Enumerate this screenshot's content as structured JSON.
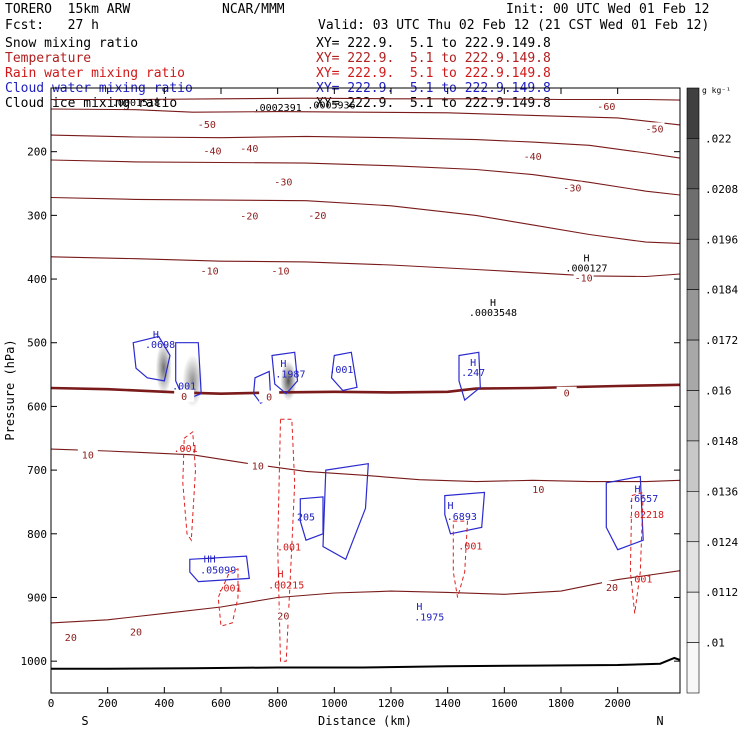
{
  "header": {
    "model": "TORERO  15km ARW",
    "org": "NCAR/MMM",
    "init": "Init: 00 UTC Wed 01 Feb 12",
    "fcst": "Fcst:   27 h",
    "valid": "Valid: 03 UTC Thu 02 Feb 12 (21 CST Wed 01 Feb 12)",
    "fields": [
      {
        "name": "Snow mixing ratio",
        "xy": "XY= 222.9.  5.1 to 222.9.149.8",
        "color": "#000000"
      },
      {
        "name": "Temperature",
        "xy": "XY= 222.9.  5.1 to 222.9.149.8",
        "color": "#b02020"
      },
      {
        "name": "Rain water mixing ratio",
        "xy": "XY= 222.9.  5.1 to 222.9.149.8",
        "color": "#d01818"
      },
      {
        "name": "Cloud water mixing ratio",
        "xy": "XY= 222.9.  5.1 to 222.9.149.8",
        "color": "#2020c0"
      },
      {
        "name": "Cloud ice mixing ratio",
        "xy": "XY= 222.9.  5.1 to 222.9.149.8",
        "color": "#000000"
      }
    ]
  },
  "chart_data": {
    "type": "contour-cross-section",
    "xlabel": "Distance (km)",
    "ylabel": "Pressure (hPa)",
    "xlim": [
      0,
      2220
    ],
    "ylim": [
      1050,
      100
    ],
    "xticks": [
      0,
      200,
      400,
      600,
      800,
      1000,
      1200,
      1400,
      1600,
      1800,
      2000
    ],
    "yticks": [
      200,
      300,
      400,
      500,
      600,
      700,
      800,
      900,
      1000
    ],
    "x_end_labels": {
      "left": "S",
      "right": "N"
    },
    "colorbar": {
      "unit": "g kg⁻¹",
      "ticks": [
        ".022",
        ".0208",
        ".0196",
        ".0184",
        ".0172",
        ".016",
        ".0148",
        ".0136",
        ".0124",
        ".0112",
        ".01"
      ],
      "colors": [
        "#404040",
        "#5a5a5a",
        "#6e6e6e",
        "#828282",
        "#969696",
        "#a8a8a8",
        "#b8b8b8",
        "#c8c8c8",
        "#d6d6d6",
        "#e2e2e2",
        "#eeeeee",
        "#f7f7f7"
      ]
    },
    "temperature_isotherms": [
      {
        "value": -60,
        "pts": [
          [
            0,
            118
          ],
          [
            300,
            118
          ],
          [
            600,
            117
          ],
          [
            900,
            116
          ],
          [
            1200,
            117
          ],
          [
            1500,
            117
          ],
          [
            1800,
            118
          ],
          [
            2100,
            118
          ],
          [
            2220,
            119
          ]
        ]
      },
      {
        "value": -50,
        "pts": [
          [
            0,
            133
          ],
          [
            300,
            134
          ],
          [
            500,
            138
          ],
          [
            800,
            137
          ],
          [
            1100,
            138
          ],
          [
            1400,
            139
          ],
          [
            1700,
            143
          ],
          [
            2000,
            147
          ],
          [
            2220,
            158
          ]
        ]
      },
      {
        "value": -40,
        "pts": [
          [
            0,
            174
          ],
          [
            300,
            177
          ],
          [
            600,
            178
          ],
          [
            900,
            176
          ],
          [
            1200,
            178
          ],
          [
            1500,
            181
          ],
          [
            1700,
            185
          ],
          [
            1900,
            190
          ],
          [
            2100,
            202
          ],
          [
            2220,
            210
          ]
        ]
      },
      {
        "value": -30,
        "pts": [
          [
            0,
            213
          ],
          [
            300,
            216
          ],
          [
            600,
            217
          ],
          [
            900,
            218
          ],
          [
            1200,
            222
          ],
          [
            1500,
            228
          ],
          [
            1700,
            236
          ],
          [
            1900,
            248
          ],
          [
            2100,
            262
          ],
          [
            2220,
            268
          ]
        ]
      },
      {
        "value": -20,
        "pts": [
          [
            0,
            272
          ],
          [
            300,
            275
          ],
          [
            600,
            276
          ],
          [
            900,
            277
          ],
          [
            1200,
            285
          ],
          [
            1500,
            300
          ],
          [
            1700,
            315
          ],
          [
            1900,
            330
          ],
          [
            2100,
            342
          ],
          [
            2220,
            344
          ]
        ]
      },
      {
        "value": -10,
        "pts": [
          [
            0,
            365
          ],
          [
            300,
            368
          ],
          [
            600,
            372
          ],
          [
            900,
            373
          ],
          [
            1200,
            378
          ],
          [
            1500,
            385
          ],
          [
            1700,
            390
          ],
          [
            1900,
            395
          ],
          [
            2100,
            396
          ],
          [
            2220,
            392
          ]
        ]
      },
      {
        "value": 0,
        "pts": [
          [
            0,
            571
          ],
          [
            200,
            573
          ],
          [
            450,
            578
          ],
          [
            600,
            580
          ],
          [
            800,
            578
          ],
          [
            1000,
            577
          ],
          [
            1200,
            578
          ],
          [
            1400,
            577
          ],
          [
            1500,
            572
          ],
          [
            1700,
            571
          ],
          [
            2000,
            568
          ],
          [
            2220,
            566
          ]
        ],
        "bold": true
      },
      {
        "value": 10,
        "pts": [
          [
            0,
            667
          ],
          [
            200,
            670
          ],
          [
            500,
            676
          ],
          [
            700,
            690
          ],
          [
            900,
            702
          ],
          [
            1100,
            708
          ],
          [
            1300,
            715
          ],
          [
            1500,
            718
          ],
          [
            1700,
            716
          ],
          [
            1900,
            718
          ],
          [
            2100,
            718
          ],
          [
            2220,
            716
          ]
        ]
      },
      {
        "value": 20,
        "pts": [
          [
            0,
            940
          ],
          [
            200,
            935
          ],
          [
            400,
            925
          ],
          [
            600,
            915
          ],
          [
            800,
            900
          ],
          [
            1000,
            893
          ],
          [
            1200,
            890
          ],
          [
            1400,
            892
          ],
          [
            1600,
            895
          ],
          [
            1800,
            890
          ],
          [
            2000,
            872
          ],
          [
            2220,
            858
          ]
        ]
      }
    ],
    "temperature_labels": [
      {
        "text": "-60",
        "x": 1960,
        "p": 130
      },
      {
        "text": "-50",
        "x": 550,
        "p": 158
      },
      {
        "text": "-50",
        "x": 2130,
        "p": 165
      },
      {
        "text": "-40",
        "x": 570,
        "p": 200
      },
      {
        "text": "-40",
        "x": 700,
        "p": 196
      },
      {
        "text": "-40",
        "x": 1700,
        "p": 208
      },
      {
        "text": "-30",
        "x": 820,
        "p": 248
      },
      {
        "text": "-30",
        "x": 1840,
        "p": 258
      },
      {
        "text": "-20",
        "x": 700,
        "p": 302
      },
      {
        "text": "-20",
        "x": 940,
        "p": 301
      },
      {
        "text": "-10",
        "x": 560,
        "p": 388
      },
      {
        "text": "-10",
        "x": 810,
        "p": 388
      },
      {
        "text": "-10",
        "x": 1880,
        "p": 399
      },
      {
        "text": "0",
        "x": 470,
        "p": 585
      },
      {
        "text": "0",
        "x": 770,
        "p": 586
      },
      {
        "text": "0",
        "x": 1820,
        "p": 580
      },
      {
        "text": "10",
        "x": 130,
        "p": 677
      },
      {
        "text": "10",
        "x": 730,
        "p": 694
      },
      {
        "text": "10",
        "x": 1720,
        "p": 731
      },
      {
        "text": "20",
        "x": 70,
        "p": 964
      },
      {
        "text": "20",
        "x": 300,
        "p": 955
      },
      {
        "text": "20",
        "x": 820,
        "p": 930
      },
      {
        "text": "20",
        "x": 1980,
        "p": 885
      }
    ],
    "data_labels": [
      {
        "text": ".0001518",
        "x": 300,
        "p": 122,
        "color": "#000000"
      },
      {
        "text": ".0002391",
        "x": 800,
        "p": 130,
        "color": "#000000"
      },
      {
        "text": ".0005936",
        "x": 990,
        "p": 126,
        "color": "#000000"
      },
      {
        "text": "H",
        "x": 1890,
        "p": 366,
        "color": "#000000"
      },
      {
        "text": ".000127",
        "x": 1890,
        "p": 382,
        "color": "#000000"
      },
      {
        "text": "H",
        "x": 1560,
        "p": 436,
        "color": "#000000"
      },
      {
        "text": ".0003548",
        "x": 1560,
        "p": 452,
        "color": "#000000"
      },
      {
        "text": "H",
        "x": 370,
        "p": 486,
        "color": "#2020c0"
      },
      {
        "text": ".0698",
        "x": 385,
        "p": 502,
        "color": "#2020c0"
      },
      {
        "text": ".001",
        "x": 470,
        "p": 567,
        "color": "#2020c0"
      },
      {
        "text": "H",
        "x": 820,
        "p": 532,
        "color": "#2020c0"
      },
      {
        "text": ".1987",
        "x": 845,
        "p": 548,
        "color": "#2020c0"
      },
      {
        "text": ".001",
        "x": 1025,
        "p": 541,
        "color": "#2020c0"
      },
      {
        "text": "H",
        "x": 1490,
        "p": 530,
        "color": "#2020c0"
      },
      {
        "text": ".247",
        "x": 1490,
        "p": 546,
        "color": "#2020c0"
      },
      {
        "text": ".001",
        "x": 475,
        "p": 665,
        "color": "#d01818"
      },
      {
        "text": "H",
        "x": 1410,
        "p": 755,
        "color": "#2020c0"
      },
      {
        "text": ".6893",
        "x": 1450,
        "p": 772,
        "color": "#2020c0"
      },
      {
        "text": "205",
        "x": 900,
        "p": 773,
        "color": "#2020c0"
      },
      {
        "text": "H",
        "x": 2070,
        "p": 729,
        "color": "#2020c0"
      },
      {
        "text": ".6657",
        "x": 2090,
        "p": 744,
        "color": "#2020c0"
      },
      {
        "text": ".02218",
        "x": 2100,
        "p": 769,
        "color": "#d01818"
      },
      {
        "text": ".001",
        "x": 840,
        "p": 820,
        "color": "#d01818"
      },
      {
        "text": ".001",
        "x": 1480,
        "p": 818,
        "color": "#d01818"
      },
      {
        "text": "HH",
        "x": 560,
        "p": 839,
        "color": "#2020c0"
      },
      {
        "text": ".05099",
        "x": 590,
        "p": 856,
        "color": "#2020c0"
      },
      {
        "text": "H",
        "x": 810,
        "p": 862,
        "color": "#d01818"
      },
      {
        "text": ".00215",
        "x": 830,
        "p": 880,
        "color": "#d01818"
      },
      {
        "text": ".001",
        "x": 630,
        "p": 884,
        "color": "#d01818"
      },
      {
        "text": ".001",
        "x": 2080,
        "p": 870,
        "color": "#d01818"
      },
      {
        "text": "H",
        "x": 1300,
        "p": 913,
        "color": "#2020c0"
      },
      {
        "text": ".1975",
        "x": 1335,
        "p": 930,
        "color": "#2020c0"
      }
    ],
    "shading": [
      {
        "x": 398,
        "p": 540,
        "w": 10,
        "h": 70,
        "level": 0.7
      },
      {
        "x": 500,
        "p": 560,
        "w": 14,
        "h": 70,
        "level": 0.55
      },
      {
        "x": 838,
        "p": 560,
        "w": 10,
        "h": 50,
        "level": 0.85
      }
    ],
    "cloud_water_contours": [
      [
        [
          290,
          500
        ],
        [
          380,
          490
        ],
        [
          420,
          520
        ],
        [
          400,
          560
        ],
        [
          340,
          555
        ],
        [
          300,
          540
        ]
      ],
      [
        [
          440,
          500
        ],
        [
          520,
          500
        ],
        [
          530,
          580
        ],
        [
          470,
          590
        ],
        [
          440,
          560
        ]
      ],
      [
        [
          720,
          555
        ],
        [
          770,
          545
        ],
        [
          775,
          585
        ],
        [
          740,
          595
        ],
        [
          715,
          580
        ]
      ],
      [
        [
          780,
          520
        ],
        [
          860,
          515
        ],
        [
          870,
          560
        ],
        [
          830,
          580
        ],
        [
          790,
          565
        ]
      ],
      [
        [
          1000,
          520
        ],
        [
          1060,
          515
        ],
        [
          1080,
          570
        ],
        [
          1030,
          575
        ],
        [
          990,
          555
        ]
      ],
      [
        [
          1440,
          520
        ],
        [
          1510,
          515
        ],
        [
          1515,
          570
        ],
        [
          1460,
          590
        ],
        [
          1440,
          560
        ]
      ],
      [
        [
          880,
          745
        ],
        [
          960,
          742
        ],
        [
          960,
          800
        ],
        [
          900,
          810
        ],
        [
          880,
          780
        ]
      ],
      [
        [
          970,
          700
        ],
        [
          1120,
          690
        ],
        [
          1110,
          760
        ],
        [
          1040,
          840
        ],
        [
          960,
          820
        ]
      ],
      [
        [
          1390,
          740
        ],
        [
          1530,
          735
        ],
        [
          1520,
          790
        ],
        [
          1410,
          800
        ],
        [
          1390,
          770
        ]
      ],
      [
        [
          1960,
          720
        ],
        [
          2080,
          710
        ],
        [
          2090,
          810
        ],
        [
          2000,
          825
        ],
        [
          1960,
          790
        ]
      ],
      [
        [
          490,
          840
        ],
        [
          690,
          835
        ],
        [
          700,
          870
        ],
        [
          520,
          875
        ],
        [
          490,
          860
        ]
      ]
    ],
    "rain_contours": [
      [
        [
          810,
          620
        ],
        [
          850,
          620
        ],
        [
          860,
          720
        ],
        [
          850,
          820
        ],
        [
          830,
          1000
        ],
        [
          810,
          1000
        ],
        [
          800,
          820
        ],
        [
          805,
          720
        ]
      ],
      [
        [
          470,
          650
        ],
        [
          500,
          640
        ],
        [
          510,
          700
        ],
        [
          495,
          810
        ],
        [
          480,
          800
        ],
        [
          465,
          720
        ]
      ],
      [
        [
          630,
          860
        ],
        [
          660,
          855
        ],
        [
          660,
          900
        ],
        [
          640,
          940
        ],
        [
          600,
          945
        ],
        [
          590,
          900
        ]
      ],
      [
        [
          1420,
          780
        ],
        [
          1470,
          780
        ],
        [
          1460,
          860
        ],
        [
          1435,
          900
        ],
        [
          1420,
          860
        ]
      ],
      [
        [
          2050,
          740
        ],
        [
          2090,
          735
        ],
        [
          2080,
          860
        ],
        [
          2060,
          925
        ],
        [
          2045,
          860
        ]
      ]
    ],
    "surface": {
      "pts": [
        [
          0,
          1012
        ],
        [
          200,
          1012
        ],
        [
          500,
          1011
        ],
        [
          800,
          1010
        ],
        [
          1100,
          1010
        ],
        [
          1400,
          1008
        ],
        [
          1700,
          1007
        ],
        [
          2000,
          1006
        ],
        [
          2150,
          1004
        ],
        [
          2200,
          995
        ],
        [
          2220,
          998
        ]
      ]
    }
  }
}
